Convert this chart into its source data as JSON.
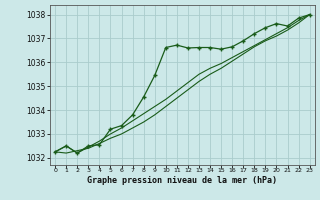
{
  "title": "Graphe pression niveau de la mer (hPa)",
  "bg_color": "#cce8e8",
  "grid_color": "#aacccc",
  "line_color": "#1a5c1a",
  "marker_color": "#1a5c1a",
  "xlim": [
    -0.5,
    23.5
  ],
  "ylim": [
    1031.7,
    1038.4
  ],
  "yticks": [
    1032,
    1033,
    1034,
    1035,
    1036,
    1037,
    1038
  ],
  "xticks": [
    0,
    1,
    2,
    3,
    4,
    5,
    6,
    7,
    8,
    9,
    10,
    11,
    12,
    13,
    14,
    15,
    16,
    17,
    18,
    19,
    20,
    21,
    22,
    23
  ],
  "series": [
    [
      1032.25,
      1032.5,
      1032.2,
      1032.5,
      1032.55,
      1033.2,
      1033.35,
      1033.8,
      1034.55,
      1035.45,
      1036.62,
      1036.72,
      1036.6,
      1036.62,
      1036.62,
      1036.55,
      1036.65,
      1036.9,
      1037.2,
      1037.45,
      1037.62,
      1037.52,
      1037.85,
      1038.0
    ],
    [
      1032.25,
      1032.5,
      1032.2,
      1032.45,
      1032.7,
      1033.0,
      1033.25,
      1033.55,
      1033.85,
      1034.15,
      1034.45,
      1034.8,
      1035.15,
      1035.5,
      1035.75,
      1035.95,
      1036.2,
      1036.45,
      1036.7,
      1036.95,
      1037.2,
      1037.45,
      1037.75,
      1038.0
    ],
    [
      1032.25,
      1032.2,
      1032.3,
      1032.4,
      1032.6,
      1032.82,
      1033.0,
      1033.25,
      1033.5,
      1033.8,
      1034.15,
      1034.5,
      1034.85,
      1035.2,
      1035.5,
      1035.75,
      1036.05,
      1036.35,
      1036.65,
      1036.9,
      1037.1,
      1037.35,
      1037.65,
      1038.0
    ]
  ]
}
